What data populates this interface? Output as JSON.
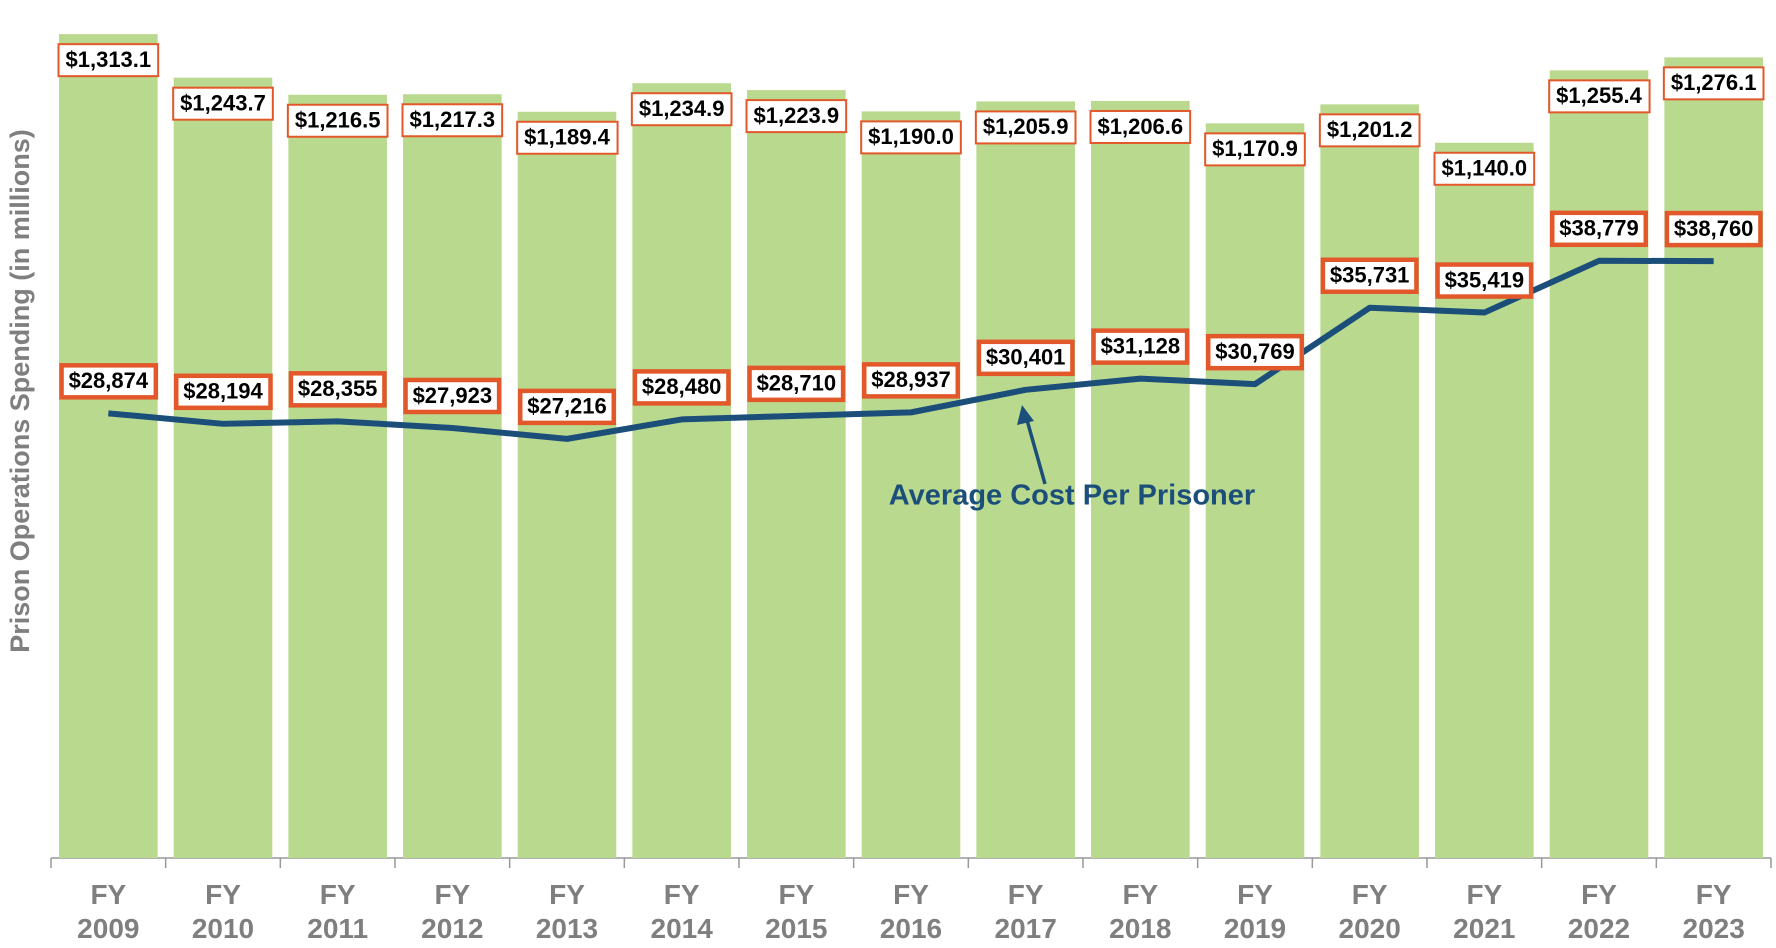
{
  "chart_data": {
    "type": "bar",
    "y_axis_label": "Prison Operations Spending (in millions)",
    "annotation": "Average Cost Per Prisoner",
    "categories": [
      "FY 2009",
      "FY 2010",
      "FY 2011",
      "FY 2012",
      "FY 2013",
      "FY 2014",
      "FY 2015",
      "FY 2016",
      "FY 2017",
      "FY 2018",
      "FY 2019",
      "FY 2020",
      "FY 2021",
      "FY 2022",
      "FY 2023"
    ],
    "ylim": [
      0,
      1350
    ],
    "y2lim": [
      0,
      55000
    ],
    "series": [
      {
        "name": "Prison Operations Spending",
        "type": "bar",
        "color": "#b9d98f",
        "values": [
          1313.1,
          1243.7,
          1216.5,
          1217.3,
          1189.4,
          1234.9,
          1223.9,
          1190.0,
          1205.9,
          1206.6,
          1170.9,
          1201.2,
          1140.0,
          1255.4,
          1276.1
        ],
        "value_labels": [
          "$1,313.1",
          "$1,243.7",
          "$1,216.5",
          "$1,217.3",
          "$1,189.4",
          "$1,234.9",
          "$1,223.9",
          "$1,190.0",
          "$1,205.9",
          "$1,206.6",
          "$1,170.9",
          "$1,201.2",
          "$1,140.0",
          "$1,255.4",
          "$1,276.1"
        ]
      },
      {
        "name": "Average Cost Per Prisoner",
        "type": "line",
        "axis": "y2",
        "color": "#1b4f7a",
        "values": [
          28874,
          28194,
          28355,
          27923,
          27216,
          28480,
          28710,
          28937,
          30401,
          31128,
          30769,
          35731,
          35419,
          38779,
          38760
        ],
        "value_labels": [
          "$28,874",
          "$28,194",
          "$28,355",
          "$27,923",
          "$27,216",
          "$28,480",
          "$28,710",
          "$28,937",
          "$30,401",
          "$31,128",
          "$30,769",
          "$35,731",
          "$35,419",
          "$38,779",
          "$38,760"
        ]
      }
    ]
  }
}
